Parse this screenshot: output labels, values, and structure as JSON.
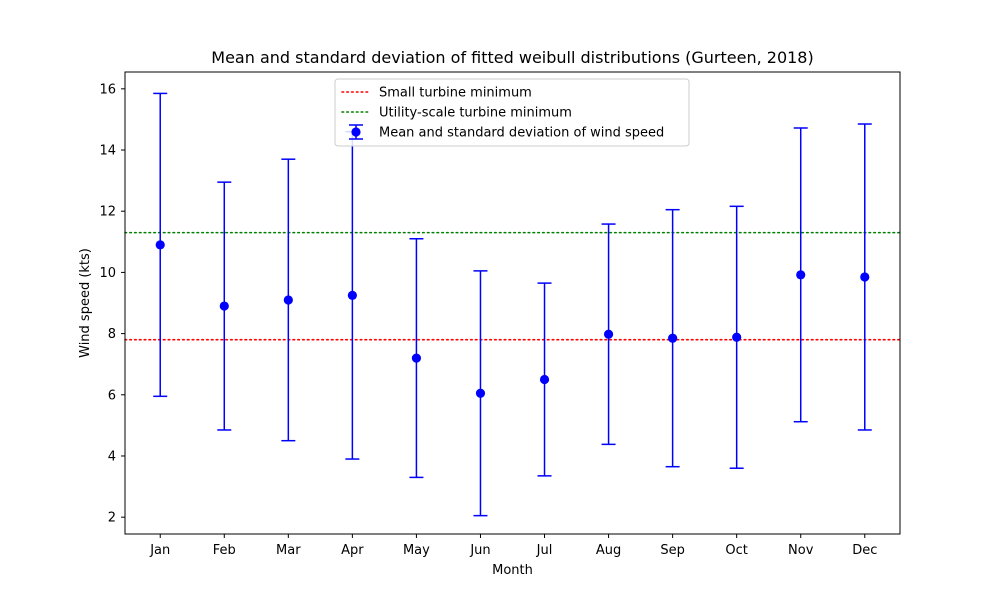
{
  "chart_data": {
    "type": "errorbar",
    "title": "Mean and standard deviation of fitted weibull distributions (Gurteen, 2018)",
    "xlabel": "Month",
    "ylabel": "Wind speed (kts)",
    "categories": [
      "Jan",
      "Feb",
      "Mar",
      "Apr",
      "May",
      "Jun",
      "Jul",
      "Aug",
      "Sep",
      "Oct",
      "Nov",
      "Dec"
    ],
    "series": [
      {
        "name": "Mean and standard deviation of wind speed",
        "color": "#0000ff",
        "marker": "circle",
        "mean": [
          10.9,
          8.9,
          9.1,
          9.25,
          7.2,
          6.05,
          6.5,
          7.98,
          7.85,
          7.88,
          9.92,
          9.85
        ],
        "std": [
          4.95,
          4.05,
          4.6,
          5.35,
          3.9,
          4.0,
          3.15,
          3.6,
          4.2,
          4.28,
          4.8,
          5.0
        ]
      }
    ],
    "hlines": [
      {
        "name": "Small turbine minimum",
        "y": 7.8,
        "color": "#ff0000",
        "style": "dotted"
      },
      {
        "name": "Utility-scale turbine minimum",
        "y": 11.3,
        "color": "#008000",
        "style": "dotted"
      }
    ],
    "ylim": [
      1.45,
      16.55
    ],
    "yticks": [
      2,
      4,
      6,
      8,
      10,
      12,
      14,
      16
    ],
    "grid": false,
    "legend_position": "top-center"
  }
}
